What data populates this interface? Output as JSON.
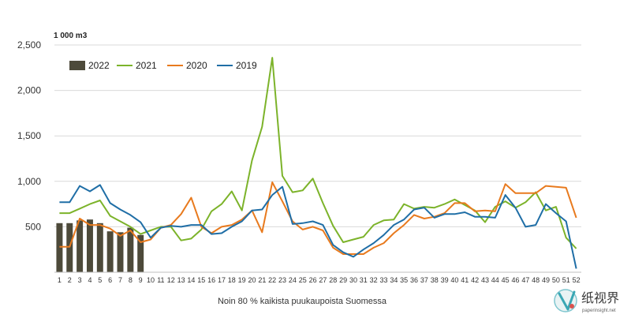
{
  "watermark": {
    "text": "纸视界",
    "url": "paperinsight.net"
  },
  "chart_data": {
    "type": "line",
    "unit_label": "1 000 m3",
    "caption": "Noin 80 % kaikista puukaupoista Suomessa",
    "ylim": [
      0,
      2500
    ],
    "yticks": [
      0,
      500,
      1000,
      1500,
      2000,
      2500
    ],
    "ytick_labels": [
      "",
      "500",
      "1,000",
      "1,500",
      "2,000",
      "2,500"
    ],
    "x": [
      1,
      2,
      3,
      4,
      5,
      6,
      7,
      8,
      9,
      10,
      11,
      12,
      13,
      14,
      15,
      16,
      17,
      18,
      19,
      20,
      21,
      22,
      23,
      24,
      25,
      26,
      27,
      28,
      29,
      30,
      31,
      32,
      33,
      34,
      35,
      36,
      37,
      38,
      39,
      40,
      41,
      42,
      43,
      44,
      45,
      46,
      47,
      48,
      49,
      50,
      51,
      52
    ],
    "legend_position": "top-left",
    "grid": "horizontal",
    "colors": {
      "2022": "#4d4a3a",
      "2021": "#7cb32a",
      "2020": "#e87a1e",
      "2019": "#1f6ea6"
    },
    "bars": {
      "name": "2022",
      "values": [
        540,
        540,
        570,
        580,
        540,
        450,
        440,
        490,
        410
      ]
    },
    "series": [
      {
        "name": "2021",
        "values": [
          650,
          650,
          700,
          750,
          790,
          620,
          560,
          500,
          420,
          460,
          500,
          500,
          350,
          370,
          470,
          670,
          750,
          890,
          680,
          1230,
          1600,
          2360,
          1060,
          880,
          900,
          1030,
          760,
          510,
          330,
          360,
          390,
          520,
          570,
          580,
          750,
          700,
          720,
          710,
          750,
          800,
          740,
          680,
          550,
          720,
          780,
          710,
          770,
          880,
          680,
          720,
          380,
          260
        ]
      },
      {
        "name": "2020",
        "values": [
          280,
          280,
          590,
          520,
          520,
          480,
          400,
          460,
          330,
          360,
          490,
          520,
          640,
          820,
          500,
          430,
          500,
          520,
          580,
          680,
          440,
          990,
          780,
          560,
          470,
          500,
          460,
          270,
          200,
          200,
          200,
          270,
          320,
          430,
          520,
          630,
          590,
          610,
          650,
          760,
          760,
          670,
          680,
          670,
          970,
          870,
          870,
          870,
          950,
          940,
          930,
          600
        ]
      },
      {
        "name": "2019",
        "values": [
          770,
          770,
          950,
          890,
          960,
          760,
          690,
          630,
          550,
          380,
          490,
          510,
          500,
          520,
          520,
          420,
          430,
          500,
          560,
          680,
          690,
          850,
          940,
          530,
          540,
          560,
          520,
          300,
          220,
          170,
          250,
          320,
          410,
          520,
          580,
          690,
          710,
          600,
          640,
          640,
          660,
          610,
          610,
          600,
          850,
          710,
          500,
          520,
          750,
          650,
          560,
          40
        ]
      }
    ]
  }
}
